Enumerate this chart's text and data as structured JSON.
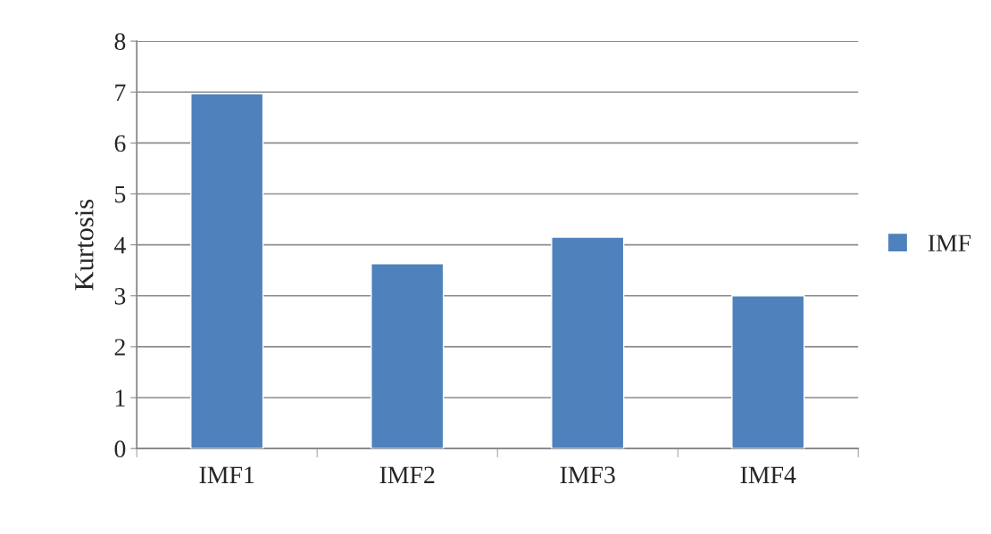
{
  "chart_data": {
    "type": "bar",
    "ylabel": "Kurtosis",
    "categories": [
      "IMF1",
      "IMF2",
      "IMF3",
      "IMF4"
    ],
    "series": [
      {
        "name": "IMF",
        "color": "#4f81bd",
        "values": [
          6.97,
          3.63,
          4.15,
          3.0
        ]
      }
    ],
    "ylim": [
      0,
      8
    ],
    "yticks": [
      0,
      1,
      2,
      3,
      4,
      5,
      6,
      7,
      8
    ],
    "grid": "y",
    "legend": "right"
  }
}
